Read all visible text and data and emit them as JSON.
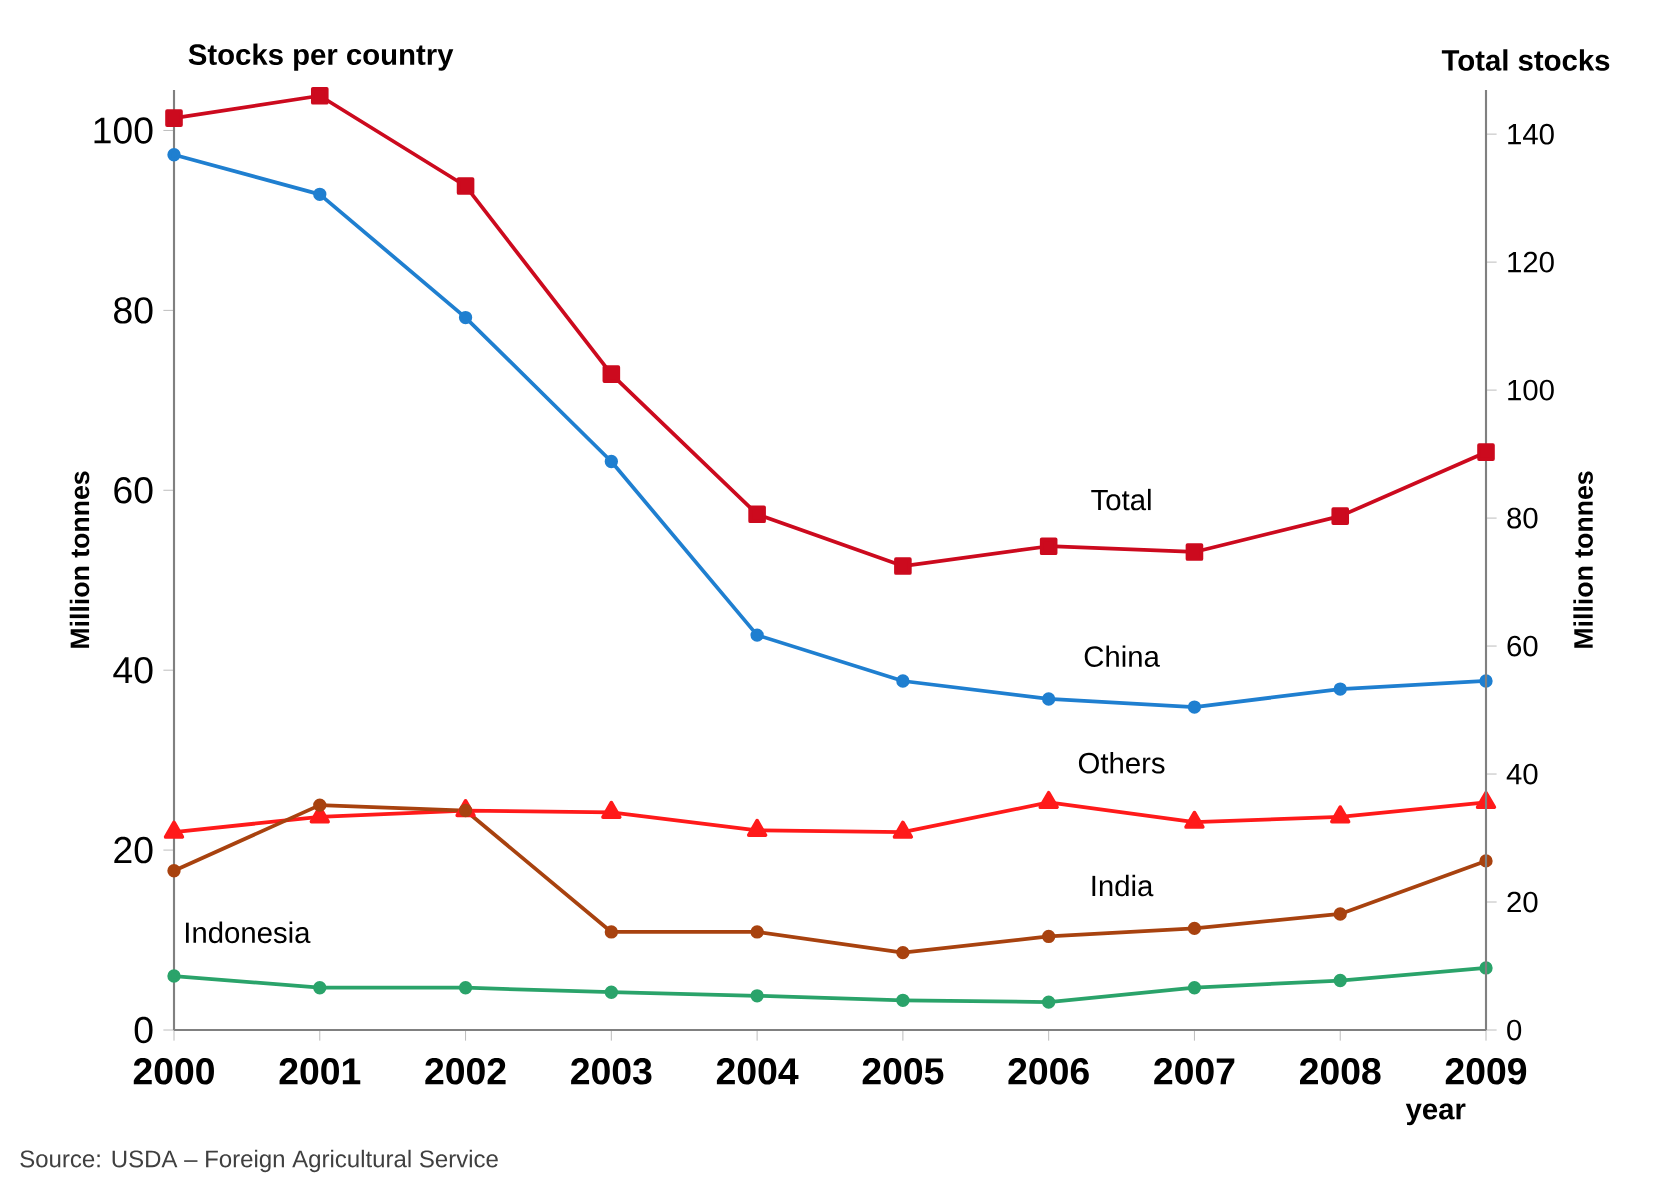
{
  "chart_data": {
    "type": "line",
    "xlabel": "year",
    "ylabel": "Million tonnes",
    "y2label": "Million tonnes",
    "annotations": [
      "Stocks per country",
      "Total stocks",
      "Source: USDA – Foreign Agricultural Service"
    ],
    "x": [
      2000,
      2001,
      2002,
      2003,
      2004,
      2005,
      2006,
      2007,
      2008,
      2009
    ],
    "xlim": [
      2000,
      2009
    ],
    "xticks": [
      2000,
      2001,
      2002,
      2003,
      2004,
      2005,
      2006,
      2007,
      2008,
      2009
    ],
    "ylim": [
      0,
      104.5
    ],
    "yticks": [
      0,
      20,
      40,
      60,
      80,
      100
    ],
    "y2lim": [
      0,
      146.9
    ],
    "y2ticks": [
      0,
      20,
      40,
      60,
      80,
      100,
      120,
      140
    ],
    "grid": false,
    "series": [
      {
        "name": "Total",
        "color": "#cc0a1e",
        "axis": "y2",
        "marker": "square",
        "values": [
          142.5,
          146,
          131.9,
          102.5,
          80.6,
          72.5,
          75.6,
          74.7,
          80.3,
          90.3
        ]
      },
      {
        "name": "China",
        "color": "#1f7fd0",
        "marker": "circle",
        "values": [
          97.3,
          92.9,
          79.2,
          63.2,
          43.9,
          38.8,
          36.8,
          35.9,
          37.9,
          38.8
        ]
      },
      {
        "name": "Others",
        "color": "#ff1a1a",
        "marker": "triangle",
        "values": [
          22,
          23.7,
          24.4,
          24.2,
          22.2,
          22,
          25.3,
          23.1,
          23.7,
          25.3
        ]
      },
      {
        "name": "India",
        "color": "#a8420f",
        "marker": "circle",
        "values": [
          17.7,
          25,
          24.4,
          10.9,
          10.9,
          8.6,
          10.4,
          11.3,
          12.9,
          18.8
        ]
      },
      {
        "name": "Indonesia",
        "color": "#2aa36a",
        "marker": "circle",
        "values": [
          6,
          4.7,
          4.7,
          4.2,
          3.8,
          3.3,
          3.1,
          4.7,
          5.5,
          6.9
        ]
      }
    ]
  }
}
